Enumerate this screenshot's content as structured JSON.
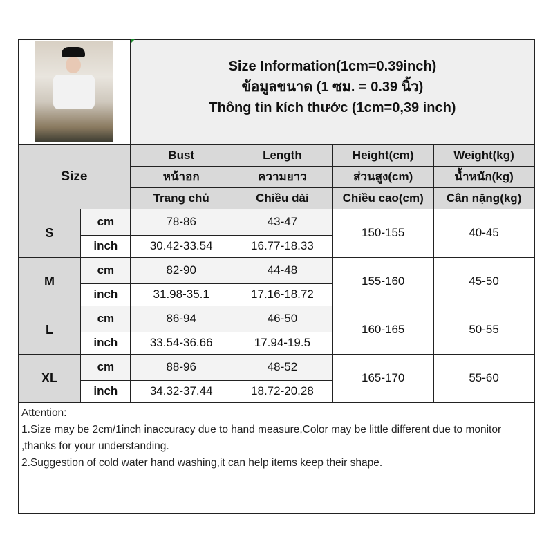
{
  "header": {
    "title_en": "Size Information(1cm=0.39inch)",
    "title_th": "ข้อมูลขนาด (1 ซม. = 0.39 นิ้ว)",
    "title_vi": "Thông tin kích thước (1cm=0,39 inch)"
  },
  "columns": {
    "size_label": "Size",
    "bust": [
      "Bust",
      "หน้าอก",
      "Trang chủ"
    ],
    "length": [
      "Length",
      "ความยาว",
      "Chiều dài"
    ],
    "height": [
      "Height(cm)",
      "ส่วนสูง(cm)",
      "Chiều cao(cm)"
    ],
    "weight": [
      "Weight(kg)",
      "น้ำหนัก(kg)",
      "Cân nặng(kg)"
    ]
  },
  "units": {
    "cm": "cm",
    "inch": "inch"
  },
  "rows": [
    {
      "size": "S",
      "bust_cm": "78-86",
      "bust_inch": "30.42-33.54",
      "length_cm": "43-47",
      "length_inch": "16.77-18.33",
      "height": "150-155",
      "weight": "40-45"
    },
    {
      "size": "M",
      "bust_cm": "82-90",
      "bust_inch": "31.98-35.1",
      "length_cm": "44-48",
      "length_inch": "17.16-18.72",
      "height": "155-160",
      "weight": "45-50"
    },
    {
      "size": "L",
      "bust_cm": "86-94",
      "bust_inch": "33.54-36.66",
      "length_cm": "46-50",
      "length_inch": "17.94-19.5",
      "height": "160-165",
      "weight": "50-55"
    },
    {
      "size": "XL",
      "bust_cm": "88-96",
      "bust_inch": "34.32-37.44",
      "length_cm": "48-52",
      "length_inch": "18.72-20.28",
      "height": "165-170",
      "weight": "55-60"
    }
  ],
  "attention": {
    "title": "Attention:",
    "line1": "1.Size may be 2cm/1inch inaccuracy due to hand measure,Color may be little different due to monitor ,thanks for your understanding.",
    "line2": "2.Suggestion of cold water hand washing,it can help items keep their shape."
  }
}
